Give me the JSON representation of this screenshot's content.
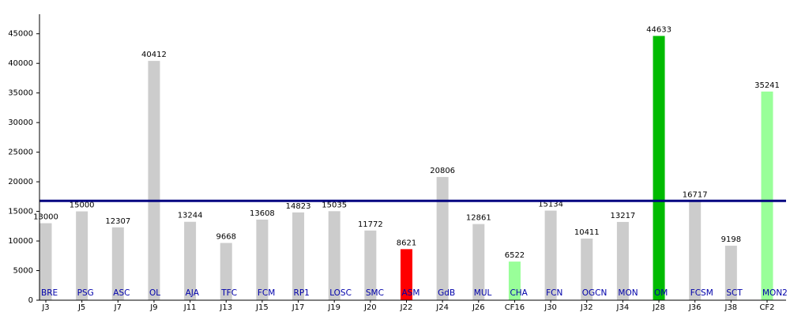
{
  "chart_data": {
    "type": "bar",
    "categories": [
      "J3",
      "J5",
      "J7",
      "J9",
      "J11",
      "J13",
      "J15",
      "J17",
      "J19",
      "J20",
      "J22",
      "J24",
      "J26",
      "CF16",
      "J30",
      "J32",
      "J34",
      "J28",
      "J36",
      "J38",
      "CF2"
    ],
    "bar_labels": [
      "BRE",
      "PSG",
      "ASC",
      "OL",
      "AJA",
      "TFC",
      "FCM",
      "RP1",
      "LOSC",
      "SMC",
      "ASM",
      "GdB",
      "MUL",
      "CHA",
      "FCN",
      "OGCN",
      "MON",
      "OM",
      "FCSM",
      "SCT",
      "MON2"
    ],
    "values": [
      13000,
      15000,
      12307,
      40412,
      13244,
      9668,
      13608,
      14823,
      15035,
      11772,
      8621,
      20806,
      12861,
      6522,
      15134,
      10411,
      13217,
      44633,
      16717,
      9198,
      35241
    ],
    "colors": [
      "#cccccc",
      "#cccccc",
      "#cccccc",
      "#cccccc",
      "#cccccc",
      "#cccccc",
      "#cccccc",
      "#cccccc",
      "#cccccc",
      "#cccccc",
      "#ff0000",
      "#cccccc",
      "#cccccc",
      "#99ff99",
      "#cccccc",
      "#cccccc",
      "#cccccc",
      "#00bb00",
      "#cccccc",
      "#cccccc",
      "#99ff99"
    ],
    "reference_line": {
      "value": 16773,
      "color": "#000080"
    },
    "ylim": [
      0,
      48300
    ],
    "yticks": [
      0,
      5000,
      10000,
      15000,
      20000,
      25000,
      30000,
      35000,
      40000,
      45000
    ],
    "grid": false
  }
}
